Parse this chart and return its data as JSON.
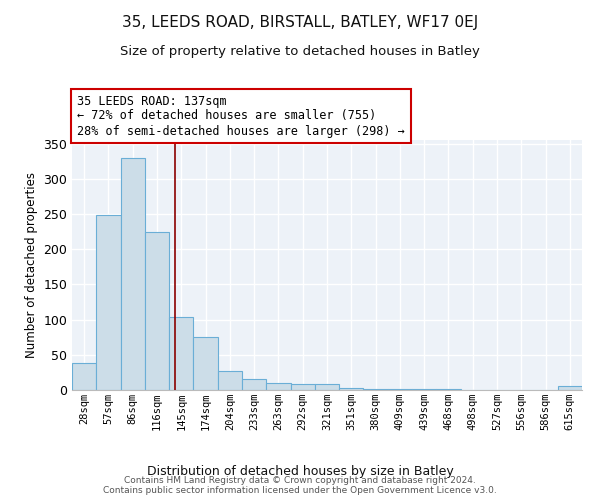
{
  "title1": "35, LEEDS ROAD, BIRSTALL, BATLEY, WF17 0EJ",
  "title2": "Size of property relative to detached houses in Batley",
  "xlabel": "Distribution of detached houses by size in Batley",
  "ylabel": "Number of detached properties",
  "footer": "Contains HM Land Registry data © Crown copyright and database right 2024.\nContains public sector information licensed under the Open Government Licence v3.0.",
  "bar_labels": [
    "28sqm",
    "57sqm",
    "86sqm",
    "116sqm",
    "145sqm",
    "174sqm",
    "204sqm",
    "233sqm",
    "263sqm",
    "292sqm",
    "321sqm",
    "351sqm",
    "380sqm",
    "409sqm",
    "439sqm",
    "468sqm",
    "498sqm",
    "527sqm",
    "556sqm",
    "586sqm",
    "615sqm"
  ],
  "bar_values": [
    38,
    248,
    330,
    225,
    103,
    75,
    27,
    16,
    10,
    8,
    8,
    3,
    2,
    2,
    1,
    1,
    0,
    0,
    0,
    0,
    5
  ],
  "bar_color": "#ccdde8",
  "bar_edge_color": "#6aaed6",
  "annotation_line1": "35 LEEDS ROAD: 137sqm",
  "annotation_line2": "← 72% of detached houses are smaller (755)",
  "annotation_line3": "28% of semi-detached houses are larger (298) →",
  "annotation_box_color": "#ffffff",
  "annotation_box_edge": "#cc0000",
  "vline_color": "#8b0000",
  "ylim": [
    0,
    355
  ],
  "yticks": [
    0,
    50,
    100,
    150,
    200,
    250,
    300,
    350
  ],
  "background_color": "#edf2f8",
  "grid_color": "#ffffff",
  "title1_fontsize": 11,
  "title2_fontsize": 9.5
}
